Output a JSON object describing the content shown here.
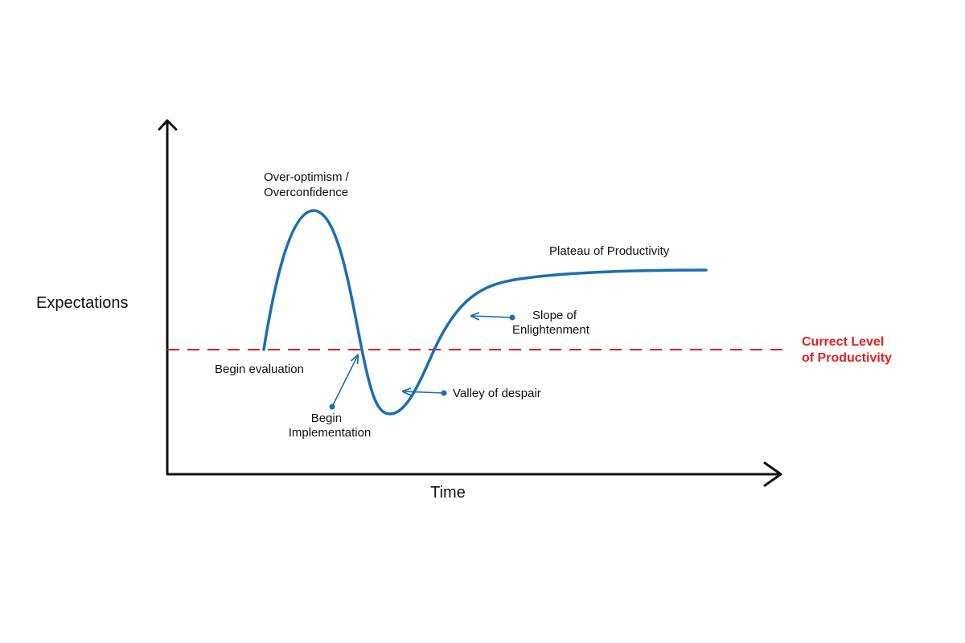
{
  "axes": {
    "y_label": "Expectations",
    "x_label": "Time"
  },
  "annotations": [
    {
      "lines": [
        "Over-optimism /",
        "Overconfidence"
      ]
    },
    {
      "lines": [
        "Plateau of Productivity"
      ]
    },
    {
      "lines": [
        "Slope of",
        "Enlightenment"
      ]
    },
    {
      "lines": [
        "Begin evaluation"
      ]
    },
    {
      "lines": [
        "Valley of despair"
      ]
    },
    {
      "lines": [
        "Begin",
        "Implementation"
      ]
    }
  ],
  "reference_line": {
    "lines": [
      "Currect Level",
      "of Productivity"
    ]
  }
}
